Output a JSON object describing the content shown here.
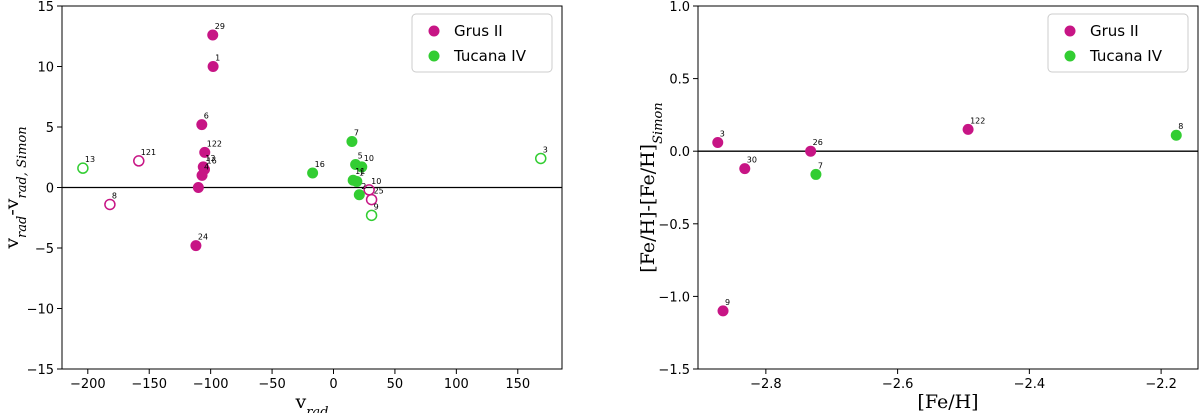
{
  "chart_data": [
    {
      "type": "scatter",
      "xlabel": [
        {
          "text": "v"
        },
        {
          "text": "rad",
          "sub": true
        }
      ],
      "ylabel": [
        {
          "text": "v"
        },
        {
          "text": "rad",
          "sub": true
        },
        {
          "text": "-v"
        },
        {
          "text": "rad, Simon",
          "sub": true
        }
      ],
      "xlim": [
        -221,
        186
      ],
      "ylim": [
        -15,
        15
      ],
      "xticks": [
        {
          "value": -200,
          "label": "−200"
        },
        {
          "value": -150,
          "label": "−150"
        },
        {
          "value": -100,
          "label": "−100"
        },
        {
          "value": -50,
          "label": "−50"
        },
        0,
        50,
        100,
        150
      ],
      "yticks": [
        {
          "value": -15,
          "label": "−15"
        },
        {
          "value": -10,
          "label": "−10"
        },
        {
          "value": -5,
          "label": "−5"
        },
        0,
        5,
        10,
        15
      ],
      "hline": 0,
      "legend": "upper right",
      "series": [
        {
          "name": "Grus II",
          "color": "#c71585",
          "x": [
            -98.3,
            -98,
            -107.2,
            -104.8,
            -106,
            -105,
            -107,
            -110,
            -112,
            -158.5,
            -182,
            31,
            29
          ],
          "values": [
            12.6,
            10.0,
            5.2,
            2.9,
            1.7,
            1.5,
            1.0,
            0.0,
            -4.8,
            2.2,
            -1.4,
            -1.0,
            -0.2
          ],
          "point_labels": [
            "29",
            "1",
            "6",
            "122",
            "13",
            "16",
            "4",
            null,
            "24",
            "121",
            "8",
            "25",
            "10"
          ],
          "hollow": [
            false,
            false,
            false,
            false,
            false,
            false,
            false,
            false,
            false,
            true,
            true,
            true,
            true
          ]
        },
        {
          "name": "Tucana IV",
          "color": "#32cd32",
          "x": [
            15,
            18,
            23,
            -17,
            16,
            19,
            21,
            -204,
            168.7,
            31
          ],
          "values": [
            3.8,
            1.9,
            1.7,
            1.2,
            0.6,
            0.5,
            -0.6,
            1.6,
            2.4,
            -2.3
          ],
          "point_labels": [
            "7",
            "5",
            "10",
            "16",
            "11",
            "1",
            "2",
            "13",
            "3",
            "9"
          ],
          "hollow": [
            false,
            false,
            false,
            false,
            false,
            false,
            false,
            true,
            true,
            true
          ]
        }
      ]
    },
    {
      "type": "scatter",
      "xlabel": [
        {
          "text": "[Fe/H]"
        }
      ],
      "ylabel": [
        {
          "text": "[Fe/H]-[Fe/H]"
        },
        {
          "text": "Simon",
          "sub": true
        }
      ],
      "xlim": [
        -2.903,
        -2.144
      ],
      "ylim": [
        -1.5,
        1.0
      ],
      "xticks": [
        {
          "value": -2.8,
          "label": "−2.8"
        },
        {
          "value": -2.6,
          "label": "−2.6"
        },
        {
          "value": -2.4,
          "label": "−2.4"
        },
        {
          "value": -2.2,
          "label": "−2.2"
        }
      ],
      "yticks": [
        {
          "value": -1.5,
          "label": "−1.5"
        },
        {
          "value": -1.0,
          "label": "−1.0"
        },
        {
          "value": -0.5,
          "label": "−0.5"
        },
        {
          "value": 0,
          "label": "0.0"
        },
        0.5,
        {
          "value": 1.0,
          "label": "1.0"
        }
      ],
      "hline": 0,
      "legend": "upper right",
      "series": [
        {
          "name": "Grus II",
          "color": "#c71585",
          "x": [
            -2.873,
            -2.832,
            -2.732,
            -2.493,
            -2.865
          ],
          "values": [
            0.06,
            -0.12,
            0.0,
            0.15,
            -1.1
          ],
          "point_labels": [
            "3",
            "30",
            "26",
            "122",
            "9"
          ],
          "hollow": [
            false,
            false,
            false,
            false,
            false
          ]
        },
        {
          "name": "Tucana IV",
          "color": "#32cd32",
          "x": [
            -2.724,
            -2.177
          ],
          "values": [
            -0.16,
            0.11
          ],
          "point_labels": [
            "7",
            "8"
          ],
          "hollow": [
            false,
            false
          ]
        }
      ]
    }
  ]
}
